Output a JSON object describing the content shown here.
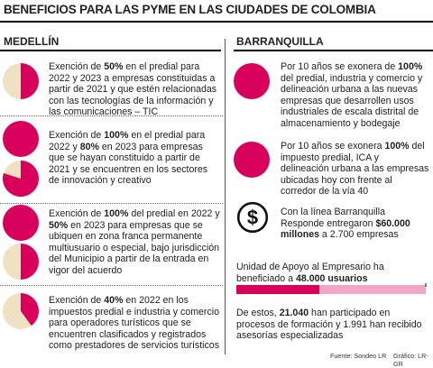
{
  "title": "BENEFICIOS PARA LAS PYME EN LAS CIUDADES DE COLOMBIA",
  "left_heading": "MEDELLÍN",
  "right_heading": "BARRANQUILLA",
  "colors": {
    "pink": "#d9005b",
    "cream": "#efe1c2",
    "light_pink": "#f1a6c6",
    "rule": "#000000"
  },
  "left_items": [
    {
      "parts": [
        [
          "Exención de ",
          false
        ],
        [
          "50%",
          true
        ],
        [
          " en el predial para 2022 y 2023 a empresas constituidas a partir de 2021 y que estén relacionadas con las tecnologías de la información y las comunicaciones – TIC",
          false
        ]
      ]
    },
    {
      "parts": [
        [
          "Exención de ",
          false
        ],
        [
          "100%",
          true
        ],
        [
          " en el predial para 2022 y ",
          false
        ],
        [
          "80%",
          true
        ],
        [
          " en 2023 para empresas que se hayan constituido a partir de 2021 y se encuentren en los sectores de innovación y creativo",
          false
        ]
      ]
    },
    {
      "parts": [
        [
          "Exención de ",
          false
        ],
        [
          "100%",
          true
        ],
        [
          " del predial en 2022 y ",
          false
        ],
        [
          "50%",
          true
        ],
        [
          " en 2023 para empresas que se ubiquen en zona franca permanente multiusuario o especial, bajo jurisdicción del Municipio a partir de la entrada en vigor del acuerdo",
          false
        ]
      ]
    },
    {
      "parts": [
        [
          "Exención de ",
          false
        ],
        [
          "40%",
          true
        ],
        [
          " en 2022 en los impuestos predial e industria y comercio para operadores turísticos que se encuentren clasificados y registrados como prestadores de servicios turísticos",
          false
        ]
      ]
    }
  ],
  "right_items": [
    {
      "parts": [
        [
          "Por 10 años se exonera de ",
          false
        ],
        [
          "100%",
          true
        ],
        [
          " del predial, industria y comercio y delineación urbana a las nuevas empresas que desarrollen usos industriales de escala distrital de almacenamiento y bodegaje",
          false
        ]
      ]
    },
    {
      "parts": [
        [
          "Por 10 años se exonera ",
          false
        ],
        [
          "100%",
          true
        ],
        [
          "  del impuesto predial, ICA y delineación urbana a las empresas ubicadas hoy con frente al corredor de la vía 40",
          false
        ]
      ]
    },
    {
      "parts": [
        [
          "Con la línea Barranquilla Responde entregaron ",
          false
        ],
        [
          "$60.000 millones",
          true
        ],
        [
          " a 2.700 empresas",
          false
        ]
      ]
    }
  ],
  "unit_text": {
    "parts": [
      [
        "Unidad de Apoyo al Empresario ha beneficiado a ",
        false
      ],
      [
        "48.000 usuarios",
        true
      ]
    ]
  },
  "trained_text": {
    "parts": [
      [
        "De estos, ",
        false
      ],
      [
        "21.040",
        true
      ],
      [
        " han participado en procesos de formación y 1.991 han recibido asesorías especializadas",
        false
      ]
    ]
  },
  "dollar_icon": "dollar-circle-icon",
  "source": "Fuente: Sondeo LR",
  "credit": "Gráfico: LR-GR",
  "chart_data": [
    {
      "type": "pie",
      "group": "Medellín",
      "slices": [
        50,
        50
      ]
    },
    {
      "type": "pie",
      "group": "Medellín",
      "slices": [
        100
      ]
    },
    {
      "type": "pie",
      "group": "Medellín",
      "slices": [
        80,
        20
      ]
    },
    {
      "type": "pie",
      "group": "Medellín",
      "slices": [
        100
      ]
    },
    {
      "type": "pie",
      "group": "Medellín",
      "slices": [
        50,
        50
      ]
    },
    {
      "type": "pie",
      "group": "Medellín",
      "slices": [
        40,
        60
      ]
    },
    {
      "type": "pie",
      "group": "Barranquilla",
      "slices": [
        100
      ]
    },
    {
      "type": "pie",
      "group": "Barranquilla",
      "slices": [
        100
      ]
    },
    {
      "type": "bar",
      "group": "Barranquilla",
      "total": 48000,
      "values": [
        21040
      ]
    }
  ]
}
